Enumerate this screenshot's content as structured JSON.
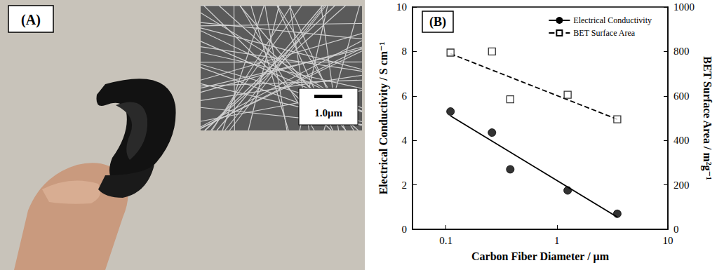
{
  "photo": {
    "label": "(A)",
    "scale_bar": "1.0μm"
  },
  "chart_data": {
    "type": "scatter",
    "title": "(B)",
    "x_label": "Carbon Fiber Diameter / μm",
    "y_label": "Electrical Conductivity / S cm⁻¹",
    "y2_label": "BET Surface Area / m²g⁻¹",
    "log": "x",
    "grid": false,
    "legend": "upper right",
    "xlim": [
      0.05,
      10
    ],
    "xticks": [
      0.1,
      1,
      10
    ],
    "ylim": [
      0,
      10
    ],
    "yticks": [
      0,
      2,
      4,
      6,
      8,
      10
    ],
    "y2lim": [
      0,
      1000
    ],
    "y2ticks": [
      0,
      200,
      400,
      600,
      800,
      1000
    ],
    "x": [
      0.11,
      0.26,
      0.38,
      1.25,
      3.5
    ],
    "series": [
      {
        "name": "Electrical Conductivity",
        "color": "#000000",
        "marker": "circle",
        "line_style": "solid",
        "values": [
          5.3,
          4.35,
          2.7,
          1.75,
          0.7
        ],
        "fit": {
          "x": [
            0.11,
            3.5
          ],
          "values": [
            5.1,
            0.55
          ]
        }
      },
      {
        "name": "BET Surface Area",
        "color": "#000000",
        "marker": "open square",
        "line_style": "dashed",
        "axis": "y2",
        "values": [
          795,
          800,
          585,
          605,
          495
        ],
        "fit": {
          "x": [
            0.11,
            3.5
          ],
          "values": [
            790,
            495
          ]
        }
      }
    ]
  }
}
